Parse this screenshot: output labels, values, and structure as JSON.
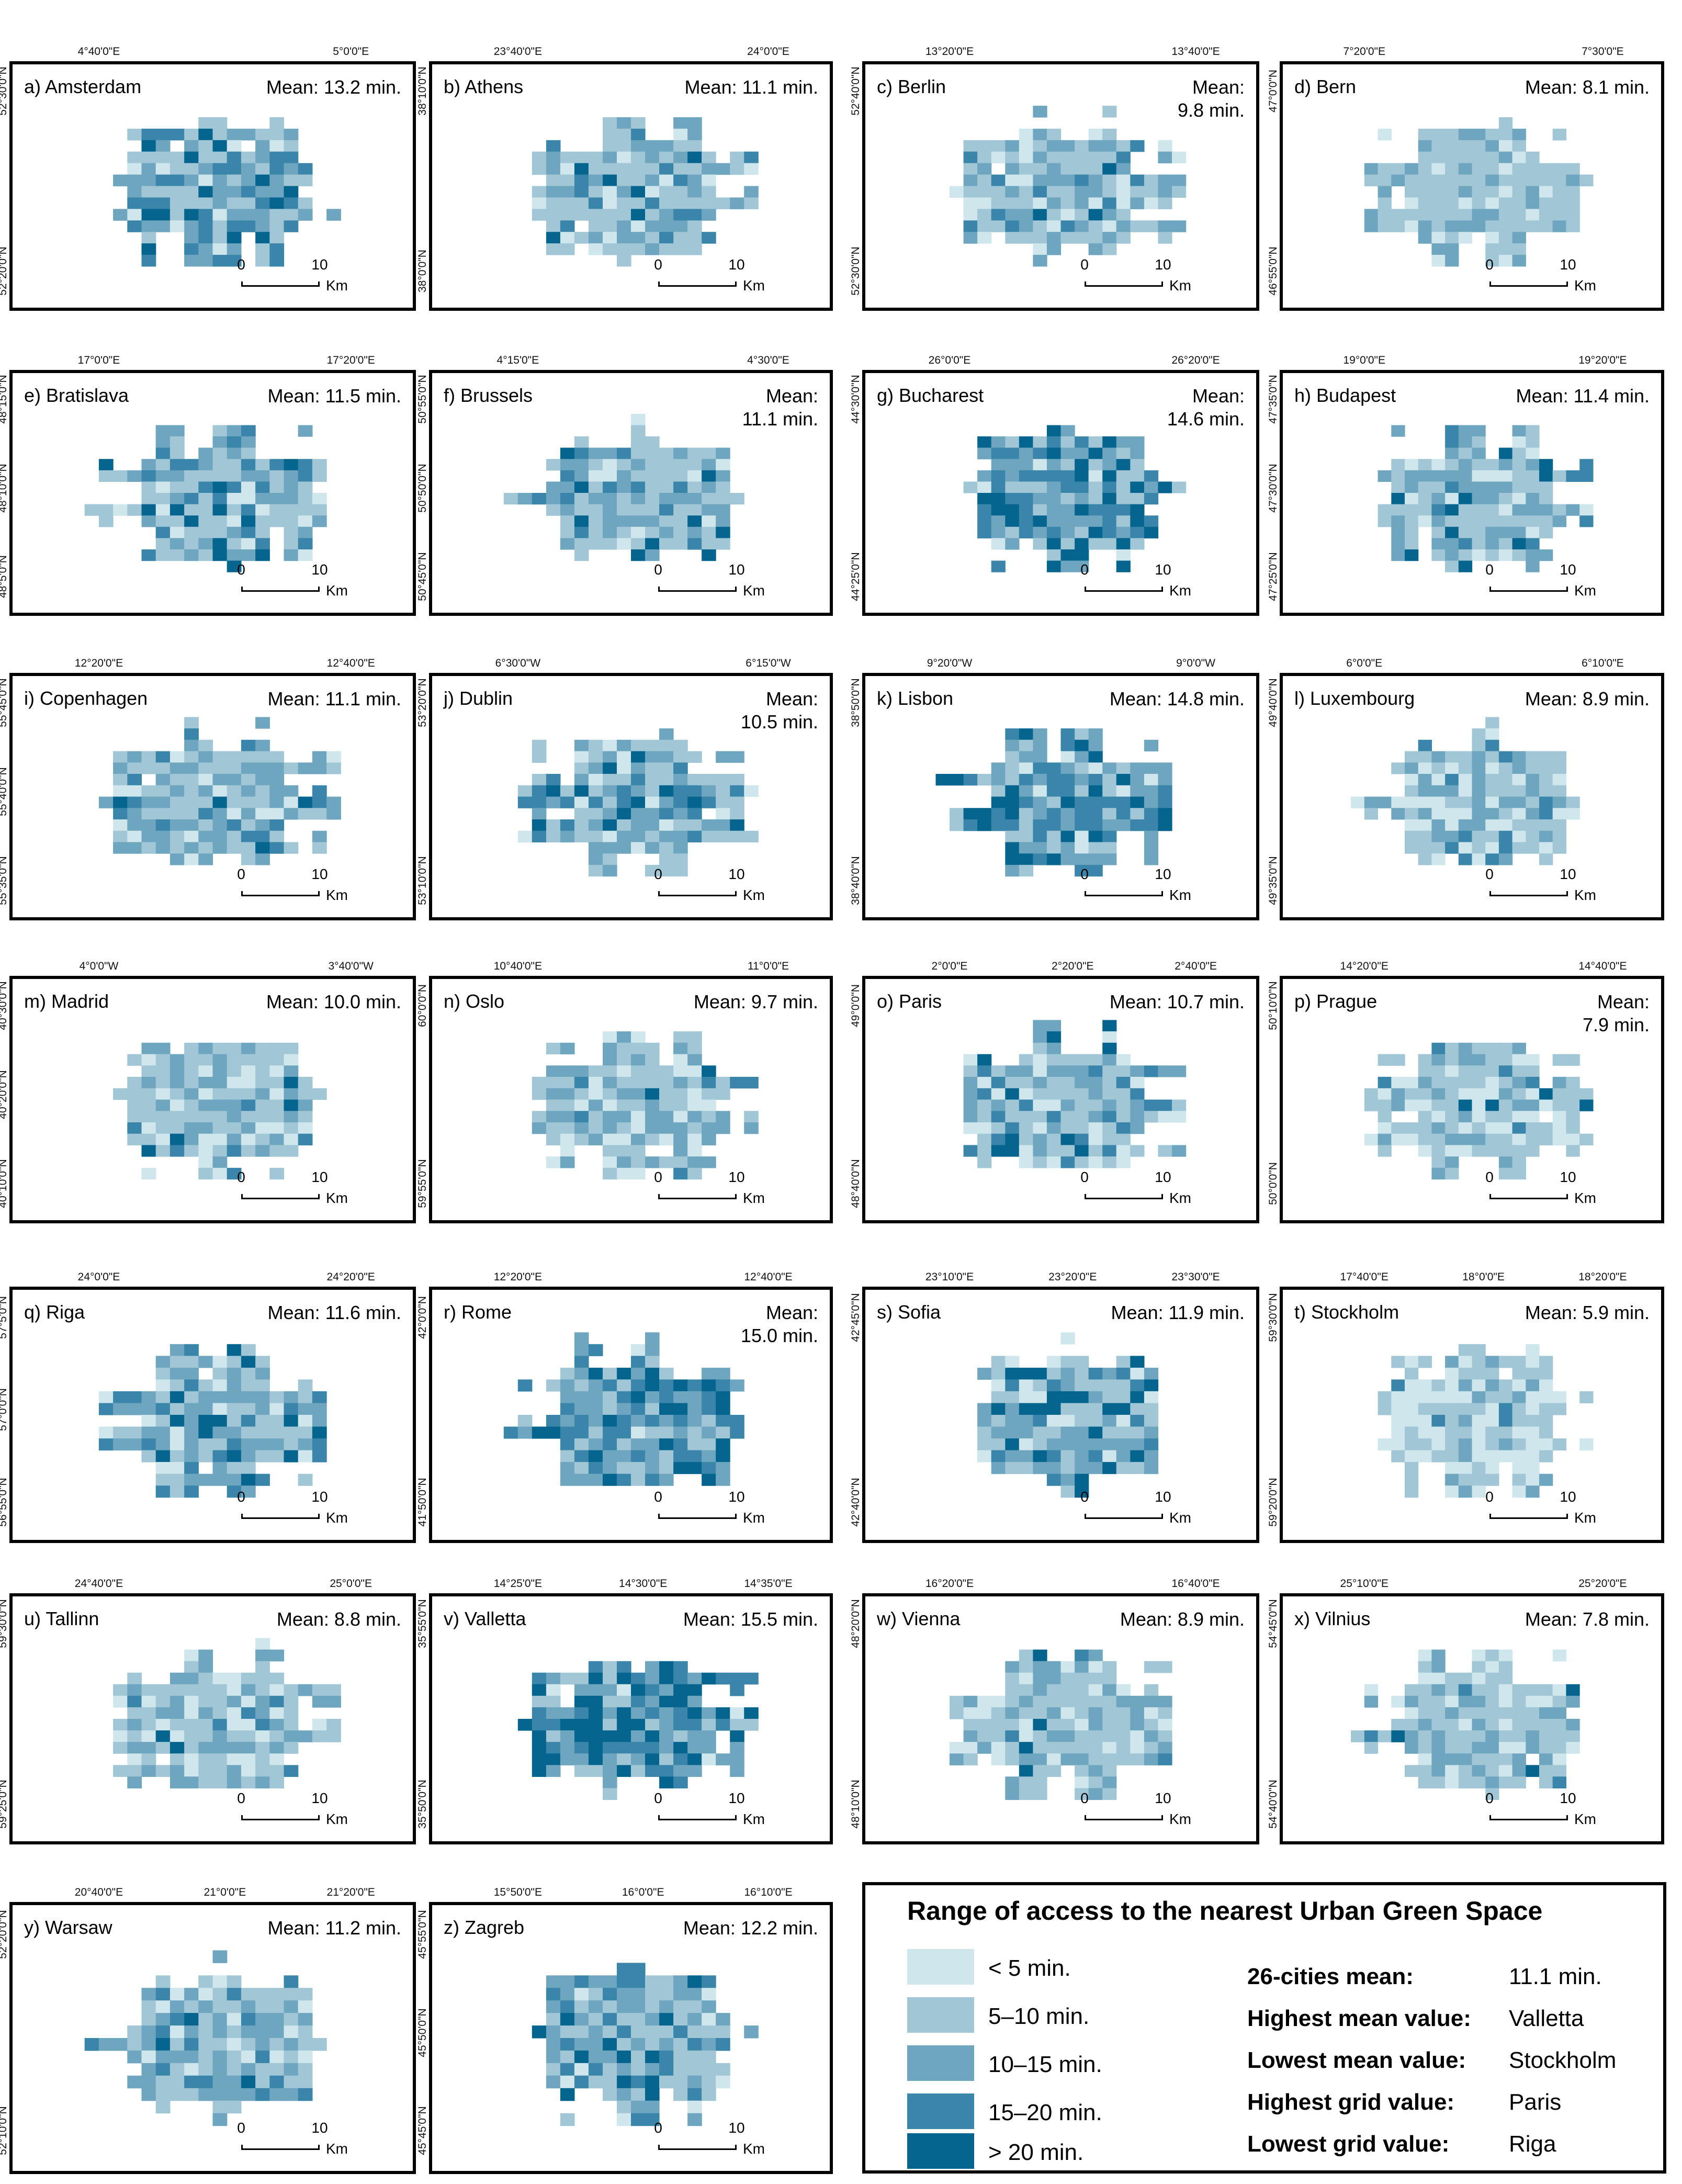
{
  "colors": {
    "class_1": "#cfe6ec",
    "class_2": "#a1c6d6",
    "class_3": "#6ea6bf",
    "class_4": "#3a86aa",
    "class_5": "#06658f"
  },
  "panels": [
    {
      "label": "a) Amsterdam",
      "mean": "Mean: 13.2 min.",
      "dist": [
        5,
        35,
        30,
        18,
        12
      ],
      "lon_ticks": [
        "4°40'0\"E",
        "5°0'0\"E"
      ],
      "lat_ticks": [
        "52°30'0\"N",
        "52°20'0\"N"
      ]
    },
    {
      "label": "b) Athens",
      "mean": "Mean: 11.1 min.",
      "dist": [
        10,
        45,
        30,
        10,
        5
      ],
      "lon_ticks": [
        "23°40'0\"E",
        "24°0'0\"E"
      ],
      "lat_ticks": [
        "38°10'0\"N",
        "38°0'0\"N"
      ]
    },
    {
      "label": "c) Berlin",
      "mean": "Mean:\n9.8 min.",
      "dist": [
        18,
        45,
        28,
        7,
        2
      ],
      "lon_ticks": [
        "13°20'0\"E",
        "13°40'0\"E"
      ],
      "lat_ticks": [
        "52°40'0\"N",
        "52°30'0\"N"
      ]
    },
    {
      "label": "d) Bern",
      "mean": "Mean: 8.1 min.",
      "dist": [
        15,
        65,
        20,
        0,
        0
      ],
      "lon_ticks": [
        "7°20'0\"E",
        "7°30'0\"E"
      ],
      "lat_ticks": [
        "47°0'0\"N",
        "46°55'0\"N"
      ]
    },
    {
      "label": "e) Bratislava",
      "mean": "Mean: 11.5 min.",
      "dist": [
        12,
        40,
        28,
        12,
        8
      ],
      "lon_ticks": [
        "17°0'0\"E",
        "17°20'0\"E"
      ],
      "lat_ticks": [
        "48°15'0\"N",
        "48°10'0\"N",
        "48°5'0\"N"
      ]
    },
    {
      "label": "f) Brussels",
      "mean": "Mean:\n11.1 min.",
      "dist": [
        10,
        45,
        30,
        10,
        5
      ],
      "lon_ticks": [
        "4°15'0\"E",
        "4°30'0\"E"
      ],
      "lat_ticks": [
        "50°55'0\"N",
        "50°50'0\"N",
        "50°45'0\"N"
      ]
    },
    {
      "label": "g) Bucharest",
      "mean": "Mean:\n14.6 min.",
      "dist": [
        4,
        20,
        30,
        26,
        20
      ],
      "lon_ticks": [
        "26°0'0\"E",
        "26°20'0\"E"
      ],
      "lat_ticks": [
        "44°30'0\"N",
        "44°25'0\"N"
      ]
    },
    {
      "label": "h) Budapest",
      "mean": "Mean: 11.4 min.",
      "dist": [
        10,
        40,
        30,
        12,
        8
      ],
      "lon_ticks": [
        "19°0'0\"E",
        "19°20'0\"E"
      ],
      "lat_ticks": [
        "47°35'0\"N",
        "47°30'0\"N",
        "47°25'0\"N"
      ]
    },
    {
      "label": "i) Copenhagen",
      "mean": "Mean: 11.1 min.",
      "dist": [
        10,
        40,
        35,
        10,
        5
      ],
      "lon_ticks": [
        "12°20'0\"E",
        "12°40'0\"E"
      ],
      "lat_ticks": [
        "55°45'0\"N",
        "55°40'0\"N",
        "55°35'0\"N"
      ]
    },
    {
      "label": "j) Dublin",
      "mean": "Mean:\n10.5 min.",
      "dist": [
        12,
        45,
        28,
        10,
        5
      ],
      "lon_ticks": [
        "6°30'0\"W",
        "6°15'0\"W"
      ],
      "lat_ticks": [
        "53°20'0\"N",
        "53°10'0\"N"
      ]
    },
    {
      "label": "k) Lisbon",
      "mean": "Mean: 14.8 min.",
      "dist": [
        4,
        18,
        30,
        28,
        20
      ],
      "lon_ticks": [
        "9°20'0\"W",
        "9°0'0\"W"
      ],
      "lat_ticks": [
        "38°50'0\"N",
        "38°40'0\"N"
      ]
    },
    {
      "label": "l) Luxembourg",
      "mean": "Mean: 8.9 min.",
      "dist": [
        20,
        45,
        30,
        5,
        0
      ],
      "lon_ticks": [
        "6°0'0\"E",
        "6°10'0\"E"
      ],
      "lat_ticks": [
        "49°40'0\"N",
        "49°35'0\"N"
      ]
    },
    {
      "label": "m) Madrid",
      "mean": "Mean: 10.0 min.",
      "dist": [
        15,
        45,
        25,
        10,
        5
      ],
      "lon_ticks": [
        "4°0'0\"W",
        "3°40'0\"W"
      ],
      "lat_ticks": [
        "40°30'0\"N",
        "40°20'0\"N",
        "40°10'0\"N"
      ]
    },
    {
      "label": "n) Oslo",
      "mean": "Mean: 9.7 min.",
      "dist": [
        18,
        45,
        30,
        5,
        2
      ],
      "lon_ticks": [
        "10°40'0\"E",
        "11°0'0\"E"
      ],
      "lat_ticks": [
        "60°0'0\"N",
        "59°55'0\"N"
      ]
    },
    {
      "label": "o) Paris",
      "mean": "Mean: 10.7 min.",
      "dist": [
        15,
        40,
        28,
        10,
        7
      ],
      "lon_ticks": [
        "2°0'0\"E",
        "2°20'0\"E",
        "2°40'0\"E"
      ],
      "lat_ticks": [
        "49°0'0\"N",
        "48°40'0\"N"
      ]
    },
    {
      "label": "p) Prague",
      "mean": "Mean:\n7.9 min.",
      "dist": [
        25,
        55,
        15,
        3,
        2
      ],
      "lon_ticks": [
        "14°20'0\"E",
        "14°40'0\"E"
      ],
      "lat_ticks": [
        "50°10'0\"N",
        "50°0'0\"N"
      ]
    },
    {
      "label": "q) Riga",
      "mean": "Mean: 11.6 min.",
      "dist": [
        8,
        40,
        32,
        12,
        8
      ],
      "lon_ticks": [
        "24°0'0\"E",
        "24°20'0\"E"
      ],
      "lat_ticks": [
        "57°5'0\"N",
        "57°0'0\"N",
        "56°55'0\"N"
      ]
    },
    {
      "label": "r) Rome",
      "mean": "Mean:\n15.0 min.",
      "dist": [
        5,
        18,
        30,
        25,
        22
      ],
      "lon_ticks": [
        "12°20'0\"E",
        "12°40'0\"E"
      ],
      "lat_ticks": [
        "42°0'0\"N",
        "41°50'0\"N"
      ]
    },
    {
      "label": "s) Sofia",
      "mean": "Mean: 11.9 min.",
      "dist": [
        10,
        35,
        30,
        13,
        12
      ],
      "lon_ticks": [
        "23°10'0\"E",
        "23°20'0\"E",
        "23°30'0\"E"
      ],
      "lat_ticks": [
        "42°45'0\"N",
        "42°40'0\"N"
      ]
    },
    {
      "label": "t) Stockholm",
      "mean": "Mean: 5.9 min.",
      "dist": [
        40,
        45,
        13,
        2,
        0
      ],
      "lon_ticks": [
        "17°40'0\"E",
        "18°0'0\"E",
        "18°20'0\"E"
      ],
      "lat_ticks": [
        "59°30'0\"N",
        "59°20'0\"N"
      ]
    },
    {
      "label": "u) Tallinn",
      "mean": "Mean: 8.8 min.",
      "dist": [
        20,
        45,
        28,
        5,
        2
      ],
      "lon_ticks": [
        "24°40'0\"E",
        "25°0'0\"E"
      ],
      "lat_ticks": [
        "59°30'0\"N",
        "59°25'0\"N"
      ]
    },
    {
      "label": "v) Valletta",
      "mean": "Mean: 15.5 min.",
      "dist": [
        2,
        12,
        30,
        30,
        26
      ],
      "lon_ticks": [
        "14°25'0\"E",
        "14°30'0\"E",
        "14°35'0\"E"
      ],
      "lat_ticks": [
        "35°55'0\"N",
        "35°50'0\"N"
      ]
    },
    {
      "label": "w) Vienna",
      "mean": "Mean: 8.9 min.",
      "dist": [
        20,
        50,
        25,
        3,
        2
      ],
      "lon_ticks": [
        "16°20'0\"E",
        "16°40'0\"E"
      ],
      "lat_ticks": [
        "48°20'0\"N",
        "48°10'0\"N"
      ]
    },
    {
      "label": "x) Vilnius",
      "mean": "Mean: 7.8 min.",
      "dist": [
        25,
        50,
        20,
        3,
        2
      ],
      "lon_ticks": [
        "25°10'0\"E",
        "25°20'0\"E"
      ],
      "lat_ticks": [
        "54°45'0\"N",
        "54°40'0\"N"
      ]
    },
    {
      "label": "y) Warsaw",
      "mean": "Mean: 11.2 min.",
      "dist": [
        12,
        40,
        28,
        12,
        8
      ],
      "lon_ticks": [
        "20°40'0\"E",
        "21°0'0\"E",
        "21°20'0\"E"
      ],
      "lat_ticks": [
        "52°20'0\"N",
        "52°10'0\"N"
      ]
    },
    {
      "label": "z) Zagreb",
      "mean": "Mean: 12.2 min.",
      "dist": [
        8,
        38,
        32,
        12,
        10
      ],
      "lon_ticks": [
        "15°50'0\"E",
        "16°0'0\"E",
        "16°10'0\"E"
      ],
      "lat_ticks": [
        "45°55'0\"N",
        "45°50'0\"N",
        "45°45'0\"N"
      ]
    }
  ],
  "scale_bar": {
    "start": "0",
    "end": "10",
    "unit": "Km"
  },
  "legend": {
    "title": "Range of access to the nearest Urban Green Space",
    "classes": [
      "< 5 min.",
      "5–10 min.",
      "10–15 min.",
      "15–20 min.",
      "> 20 min."
    ],
    "stats": [
      {
        "key": "26-cities mean:",
        "value": "11.1 min."
      },
      {
        "key": "Highest mean value:",
        "value": "Valletta"
      },
      {
        "key": "Lowest mean value:",
        "value": "Stockholm"
      },
      {
        "key": "Highest grid value:",
        "value": "Paris"
      },
      {
        "key": "Lowest grid value:",
        "value": "Riga"
      }
    ]
  }
}
